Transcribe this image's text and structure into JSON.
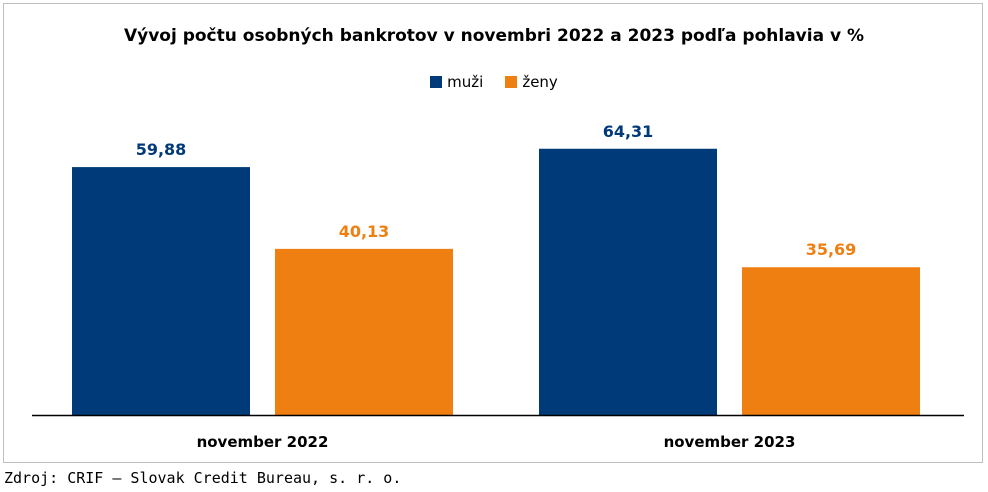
{
  "chart_data": {
    "type": "bar",
    "title": "Vývoj počtu osobných bankrotov v novembri 2022 a 2023 podľa pohlavia v %",
    "categories": [
      "november 2022",
      "november 2023"
    ],
    "series": [
      {
        "name": "muži",
        "values": [
          59.88,
          64.31
        ],
        "labels": [
          "59,88",
          "64,31"
        ],
        "color": "#003a78"
      },
      {
        "name": "ženy",
        "values": [
          40.13,
          35.69
        ],
        "labels": [
          "40,13",
          "35,69"
        ],
        "color": "#f07f12"
      }
    ],
    "xlabel": "",
    "ylabel": "",
    "ylim": [
      0,
      80
    ],
    "grid": false,
    "legend_position": "top-center"
  },
  "source": "Zdroj: CRIF – Slovak Credit Bureau, s. r. o."
}
